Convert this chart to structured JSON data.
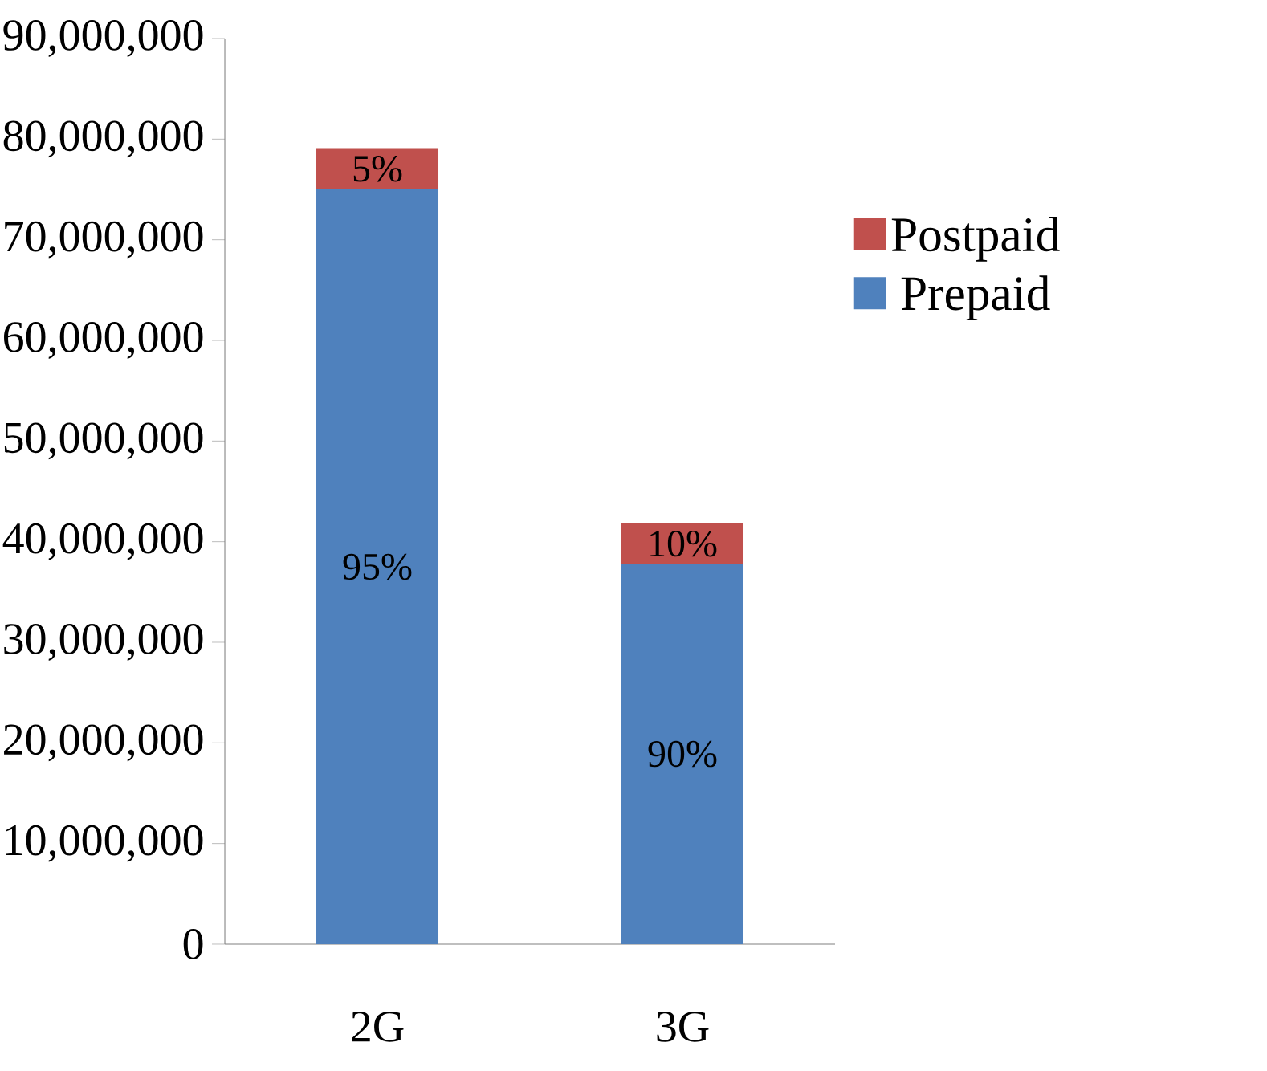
{
  "chart_data": {
    "type": "bar",
    "stacked": true,
    "categories": [
      "2G",
      "3G"
    ],
    "series": [
      {
        "name": "Prepaid",
        "color": "#4f81bd",
        "values": [
          75000000,
          37800000
        ]
      },
      {
        "name": "Postpaid",
        "color": "#c0504d",
        "values": [
          4100000,
          4000000
        ]
      }
    ],
    "annotations": [
      "95%",
      "90%",
      "5%",
      "10%"
    ],
    "ylim": [
      0,
      90000000
    ],
    "yticks": [
      {
        "value": 0,
        "label": "0"
      },
      {
        "value": 10000000,
        "label": "10,000,000"
      },
      {
        "value": 20000000,
        "label": "20,000,000"
      },
      {
        "value": 30000000,
        "label": "30,000,000"
      },
      {
        "value": 40000000,
        "label": "40,000,000"
      },
      {
        "value": 50000000,
        "label": "50,000,000"
      },
      {
        "value": 60000000,
        "label": "60,000,000"
      },
      {
        "value": 70000000,
        "label": "70,000,000"
      },
      {
        "value": 80000000,
        "label": "80,000,000"
      },
      {
        "value": 90000000,
        "label": "90,000,000"
      }
    ],
    "grid": false,
    "legend": "right"
  }
}
